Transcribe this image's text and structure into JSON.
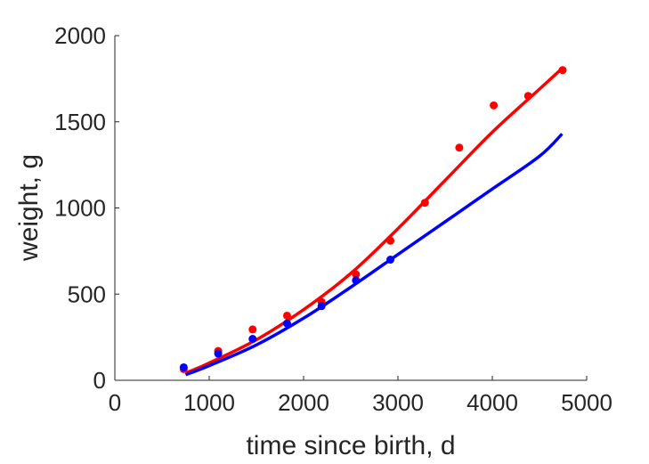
{
  "chart_data": {
    "type": "scatter",
    "xlabel": "time since birth, d",
    "ylabel": "weight, g",
    "xlim": [
      0,
      5000
    ],
    "ylim": [
      0,
      2000
    ],
    "x_ticks": [
      0,
      1000,
      2000,
      3000,
      4000,
      5000
    ],
    "y_ticks": [
      0,
      500,
      1000,
      1500,
      2000
    ],
    "x_tick_labels": [
      "0",
      "1000",
      "2000",
      "3000",
      "4000",
      "5000"
    ],
    "y_tick_labels": [
      "0",
      "500",
      "1000",
      "1500",
      "2000"
    ],
    "grid": false,
    "series": [
      {
        "color": "#ff0000",
        "points": {
          "x": [
            730,
            1095,
            1460,
            1825,
            2190,
            2555,
            2920,
            3285,
            3650,
            4015,
            4380,
            4745
          ],
          "y": [
            65,
            170,
            295,
            375,
            455,
            615,
            810,
            1030,
            1350,
            1595,
            1650,
            1800
          ]
        },
        "curve": {
          "x": [
            750,
            1000,
            1500,
            2000,
            2500,
            3000,
            3500,
            4000,
            4500,
            4740
          ],
          "y": [
            42,
            100,
            235,
            410,
            620,
            880,
            1160,
            1440,
            1690,
            1810
          ]
        }
      },
      {
        "color": "#0000ff",
        "points": {
          "x": [
            730,
            1095,
            1460,
            1825,
            2190,
            2555,
            2920
          ],
          "y": [
            75,
            155,
            240,
            330,
            430,
            580,
            700
          ]
        },
        "curve": {
          "x": [
            750,
            1000,
            1500,
            2000,
            2500,
            3000,
            3500,
            4000,
            4500,
            4740
          ],
          "y": [
            32,
            85,
            205,
            360,
            540,
            730,
            920,
            1110,
            1300,
            1430
          ]
        }
      }
    ]
  }
}
